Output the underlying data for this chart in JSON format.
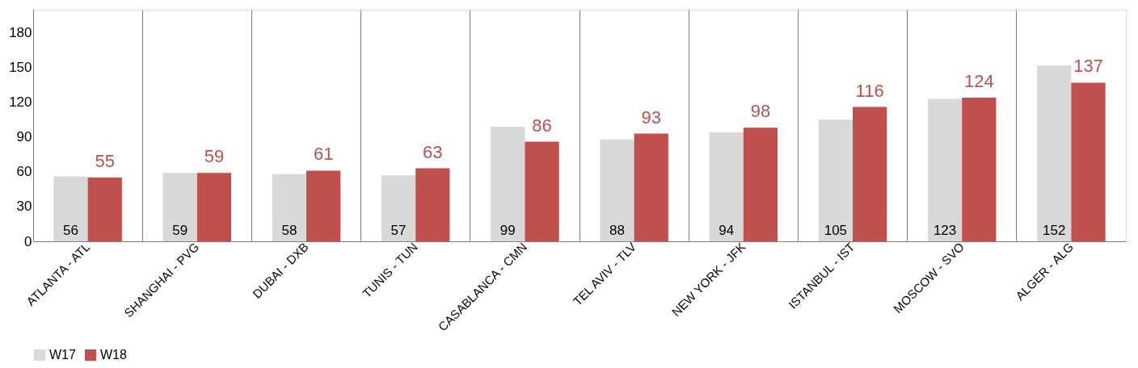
{
  "chart_data": {
    "type": "bar",
    "categories": [
      "ATLANTA - ATL",
      "SHANGHAI  - PVG",
      "DUBAI - DXB",
      "TUNIS - TUN",
      "CASABLANCA - CMN",
      "TEL AVIV - TLV",
      "NEW YORK - JFK",
      "ISTANBUL - IST",
      "MOSCOW - SVO",
      "ALGER - ALG"
    ],
    "series": [
      {
        "name": "W17",
        "color": "#d9d9d9",
        "values": [
          56,
          59,
          58,
          57,
          99,
          88,
          94,
          105,
          123,
          152
        ]
      },
      {
        "name": "W18",
        "color": "#c0504d",
        "values": [
          55,
          59,
          61,
          63,
          86,
          93,
          98,
          116,
          124,
          137
        ]
      }
    ],
    "ylim": [
      0,
      200
    ],
    "yticks": [
      0,
      30,
      60,
      90,
      120,
      150,
      180
    ],
    "grid": "x",
    "legend": "bottom",
    "data_labels": true
  }
}
